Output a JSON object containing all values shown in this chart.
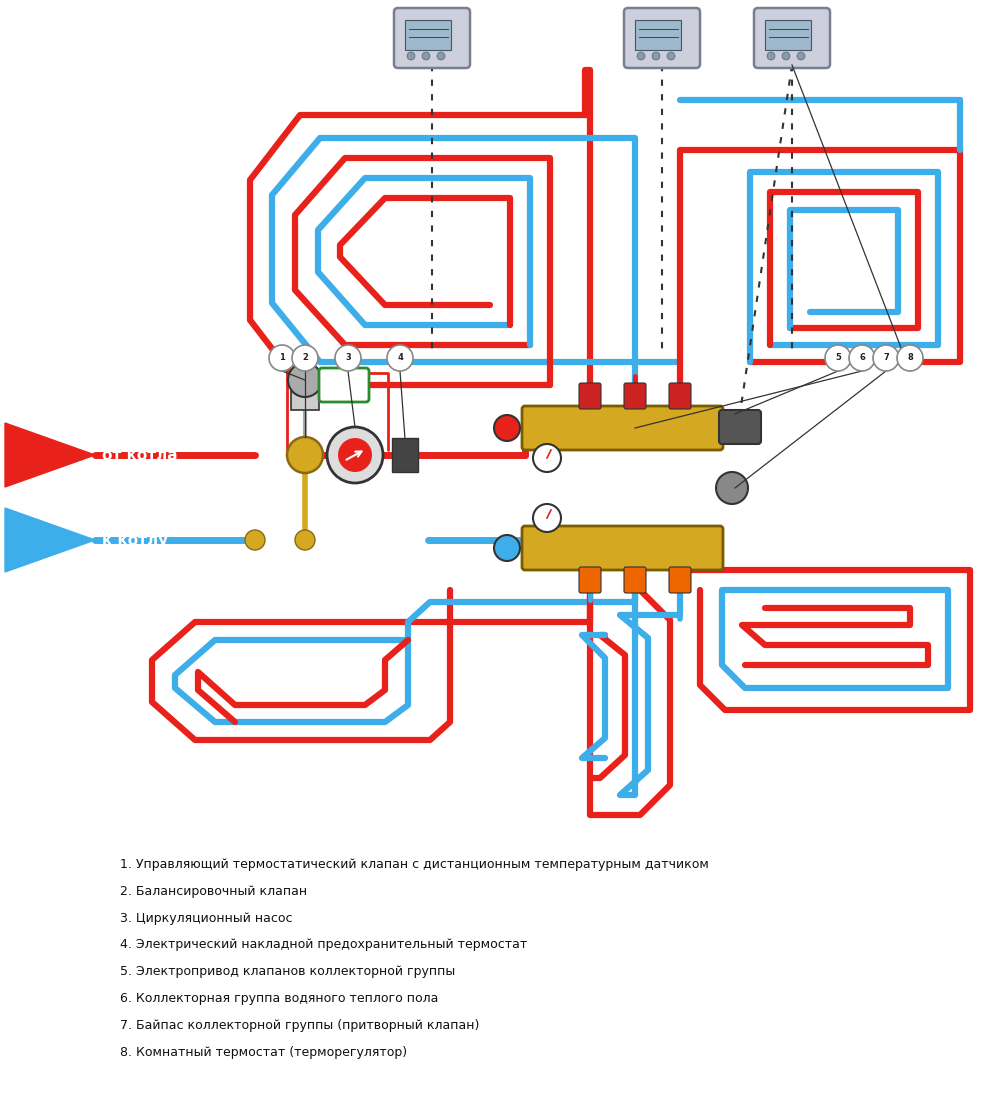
{
  "bg_color": "#ffffff",
  "red_color": "#e8221a",
  "blue_color": "#3daee9",
  "gold_color": "#d4a820",
  "green_color": "#2d8a2d",
  "dark_color": "#333333",
  "gray_color": "#aaaaaa",
  "pipe_lw": 5,
  "xlim": [
    0,
    10
  ],
  "ylim": [
    0,
    11
  ],
  "figsize": [
    10,
    11
  ],
  "label_items": [
    "1. Управляющий термостатический клапан с дистанционным температурным датчиком",
    "2. Балансировочный клапан",
    "3. Циркуляционный насос",
    "4. Электрический накладной предохранительный термостат",
    "5. Электропривод клапанов коллекторной группы",
    "6. Коллекторная группа водяного теплого пола",
    "7. Байпас коллекторной группы (притворный клапан)",
    "8. Комнатный термостат (терморегулятор)"
  ]
}
